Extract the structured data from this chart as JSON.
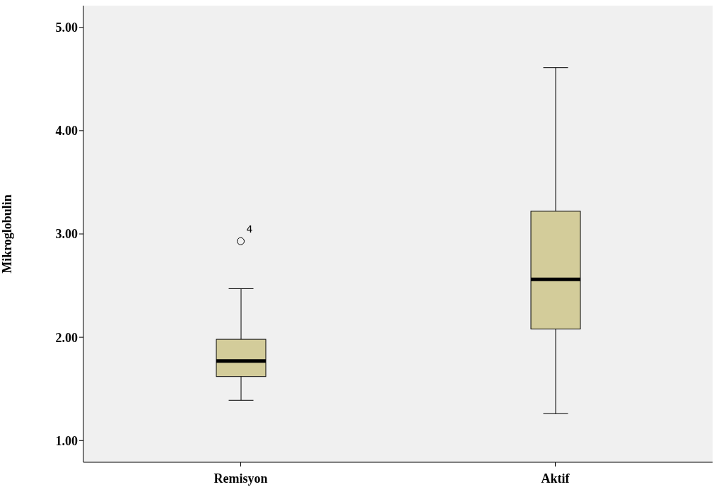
{
  "chart_data": {
    "type": "box",
    "ylabel": "Mikroglobulin",
    "categories": [
      "Remisyon",
      "Aktif"
    ],
    "color": "#d3cc9a",
    "boxes": [
      {
        "low": 1.39,
        "q1": 1.62,
        "median": 1.77,
        "q3": 1.98,
        "high": 2.47,
        "outliers": [
          2.93
        ]
      },
      {
        "low": 1.26,
        "q1": 2.08,
        "median": 2.56,
        "q3": 3.22,
        "high": 4.61
      }
    ],
    "ylim": [
      0.79,
      5.21
    ],
    "yticks": [
      {
        "value": 1,
        "label": "1.00"
      },
      {
        "value": 2,
        "label": "2.00"
      },
      {
        "value": 3,
        "label": "3.00"
      },
      {
        "value": 4,
        "label": "4.00"
      },
      {
        "value": 5,
        "label": "5.00"
      }
    ],
    "annotations": [
      "4"
    ],
    "grid": false,
    "legend": false
  }
}
